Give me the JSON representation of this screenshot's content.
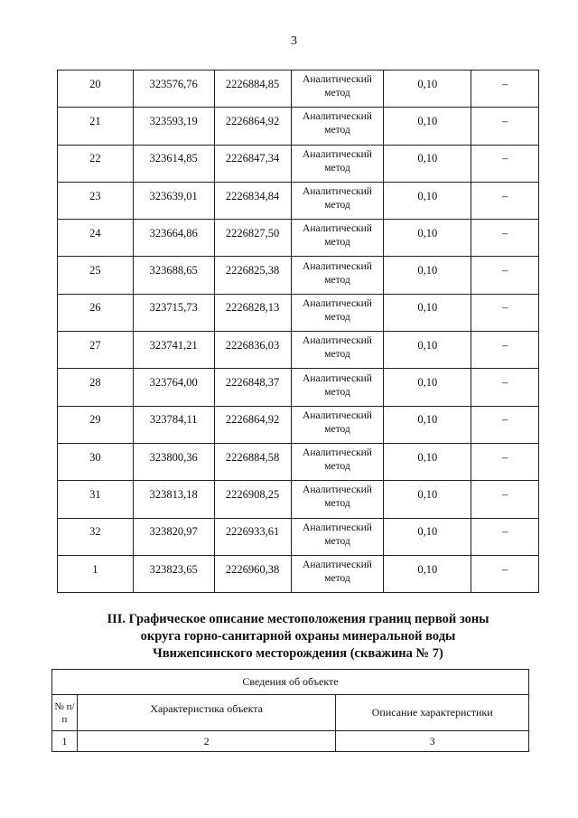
{
  "page_number": "3",
  "coordinates_table": {
    "rows": [
      {
        "point": "20",
        "x": "323576,76",
        "y": "2226884,85",
        "method": "Аналитический метод",
        "accuracy": "0,10",
        "note": "–"
      },
      {
        "point": "21",
        "x": "323593,19",
        "y": "2226864,92",
        "method": "Аналитический метод",
        "accuracy": "0,10",
        "note": "–"
      },
      {
        "point": "22",
        "x": "323614,85",
        "y": "2226847,34",
        "method": "Аналитический метод",
        "accuracy": "0,10",
        "note": "–"
      },
      {
        "point": "23",
        "x": "323639,01",
        "y": "2226834,84",
        "method": "Аналитический метод",
        "accuracy": "0,10",
        "note": "–"
      },
      {
        "point": "24",
        "x": "323664,86",
        "y": "2226827,50",
        "method": "Аналитический метод",
        "accuracy": "0,10",
        "note": "–"
      },
      {
        "point": "25",
        "x": "323688,65",
        "y": "2226825,38",
        "method": "Аналитический метод",
        "accuracy": "0,10",
        "note": "–"
      },
      {
        "point": "26",
        "x": "323715,73",
        "y": "2226828,13",
        "method": "Аналитический метод",
        "accuracy": "0,10",
        "note": "–"
      },
      {
        "point": "27",
        "x": "323741,21",
        "y": "2226836,03",
        "method": "Аналитический метод",
        "accuracy": "0,10",
        "note": "–"
      },
      {
        "point": "28",
        "x": "323764,00",
        "y": "2226848,37",
        "method": "Аналитический метод",
        "accuracy": "0,10",
        "note": "–"
      },
      {
        "point": "29",
        "x": "323784,11",
        "y": "2226864,92",
        "method": "Аналитический метод",
        "accuracy": "0,10",
        "note": "–"
      },
      {
        "point": "30",
        "x": "323800,36",
        "y": "2226884,58",
        "method": "Аналитический метод",
        "accuracy": "0,10",
        "note": "–"
      },
      {
        "point": "31",
        "x": "323813,18",
        "y": "2226908,25",
        "method": "Аналитический метод",
        "accuracy": "0,10",
        "note": "–"
      },
      {
        "point": "32",
        "x": "323820,97",
        "y": "2226933,61",
        "method": "Аналитический метод",
        "accuracy": "0,10",
        "note": "–"
      },
      {
        "point": "1",
        "x": "323823,65",
        "y": "2226960,38",
        "method": "Аналитический метод",
        "accuracy": "0,10",
        "note": "–"
      }
    ]
  },
  "section_heading": {
    "line1": "III. Графическое описание местоположения границ первой зоны",
    "line2": "округа горно-санитарной охраны минеральной воды",
    "line3": "Чвижепсинского месторождения (скважина № 7)"
  },
  "object_table": {
    "title": "Сведения об объекте",
    "col_no": "№ п/п",
    "col_characteristic": "Характеристика объекта",
    "col_description": "Описание характеристики",
    "numbering": [
      "1",
      "2",
      "3"
    ]
  }
}
